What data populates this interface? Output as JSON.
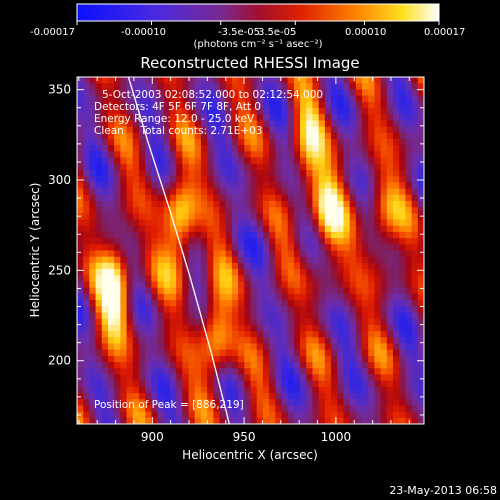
{
  "colorbar": {
    "tick_labels": [
      "-0.00017",
      "-0.00010",
      "-3.5e-05",
      "3.5e-05",
      "0.00010",
      "0.00017"
    ],
    "tick_values": [
      -0.00017,
      -0.0001,
      -3.5e-05,
      3.5e-05,
      0.0001,
      0.00017
    ],
    "range": [
      -0.00017,
      0.00017
    ],
    "units_label": "(photons cm⁻² s⁻¹ asec⁻²)",
    "colors": [
      "#0a10ff",
      "#6a2fb8",
      "#8a1f60",
      "#b80000",
      "#ff6a00",
      "#ffd81a",
      "#ffffff"
    ]
  },
  "title": "Reconstructed RHESSI Image",
  "info_lines": [
    "5-Oct-2003 02:08:52.000 to 02:12:54.000",
    "Detectors: 4F 5F 6F 7F 8F, Att 0",
    "Energy Range: 12.0 - 25.0 keV",
    "Clean     Total counts: 2.71E+03"
  ],
  "peak_label": "Position of Peak = [886,219]",
  "footer_timestamp": "23-May-2013 06:58",
  "chart_data": {
    "type": "heatmap",
    "title": "Reconstructed RHESSI Image",
    "xlabel": "Heliocentric X (arcsec)",
    "ylabel": "Heliocentric Y (arcsec)",
    "xlim": [
      859,
      1048
    ],
    "ylim": [
      165,
      357
    ],
    "x_ticks": [
      900,
      950,
      1000
    ],
    "y_ticks": [
      200,
      250,
      300,
      350
    ],
    "peak": [
      886,
      219
    ],
    "limb_curve": {
      "x": [
        887,
        898,
        910,
        921,
        932,
        942
      ],
      "y": [
        357,
        320,
        282,
        245,
        205,
        165
      ]
    },
    "bright_sources": [
      {
        "x": 880,
        "y": 240,
        "level": 1.0
      },
      {
        "x": 915,
        "y": 275,
        "level": 0.95
      },
      {
        "x": 935,
        "y": 215,
        "level": 0.8
      },
      {
        "x": 995,
        "y": 280,
        "level": 0.8
      },
      {
        "x": 1025,
        "y": 275,
        "level": 0.6
      },
      {
        "x": 985,
        "y": 320,
        "level": 0.6
      }
    ]
  }
}
